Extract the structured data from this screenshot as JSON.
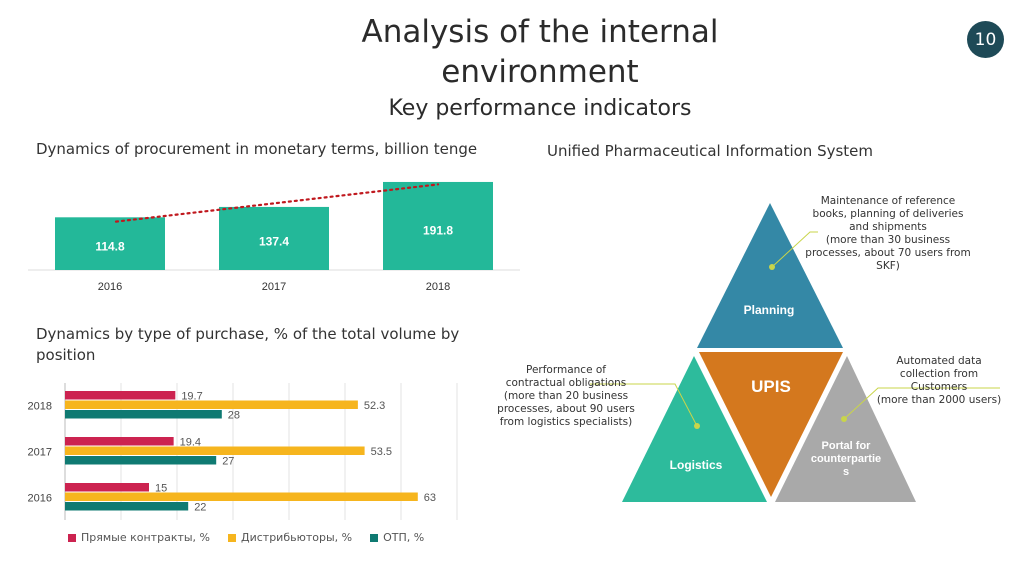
{
  "header": {
    "title": "Analysis of the internal environment",
    "subtitle": "Key performance indicators",
    "page_number": "10"
  },
  "sections": {
    "procurement_label": "Dynamics of procurement in monetary terms, billion tenge",
    "purchase_type_label": "Dynamics by type of purchase, % of the total volume by position",
    "upis_label": "Unified Pharmaceutical Information System"
  },
  "colors": {
    "teal": "#23b899",
    "red": "#cc2350",
    "orange": "#f6b51e",
    "dark_teal": "#0f7a72",
    "trend": "#c0181e",
    "badge": "#1e4a57"
  },
  "chart_data": [
    {
      "type": "bar",
      "title": "Dynamics of procurement in monetary terms, billion tenge",
      "categories": [
        "2016",
        "2017",
        "2018"
      ],
      "values": [
        114.8,
        137.4,
        191.8
      ],
      "value_labels": [
        "114.8",
        "137.4",
        "191.8"
      ],
      "trendline": "linear, dotted",
      "ylim": [
        0,
        200
      ]
    },
    {
      "type": "bar",
      "orientation": "horizontal",
      "title": "Dynamics by type of purchase, % of the total volume by position",
      "categories": [
        "2018",
        "2017",
        "2016"
      ],
      "series": [
        {
          "name": "Прямые контракты, %",
          "values": [
            19.7,
            19.4,
            15
          ]
        },
        {
          "name": "Дистрибьюторы, %",
          "values": [
            52.3,
            53.5,
            63
          ]
        },
        {
          "name": "ОТП, %",
          "values": [
            28,
            27,
            22
          ]
        }
      ],
      "value_labels": [
        [
          "19.7",
          "52.3",
          "28"
        ],
        [
          "19.4",
          "53.5",
          "27"
        ],
        [
          "15",
          "63",
          "22"
        ]
      ],
      "xlim": [
        0,
        70
      ],
      "legend": [
        "Прямые контракты, %",
        "Дистрибьюторы, %",
        "ОТП, %"
      ]
    }
  ],
  "diagram": {
    "center": "UPIS",
    "top": "Planning",
    "left": "Logistics",
    "right": "Portal for counterparties",
    "right_lines": [
      "Portal for",
      "counterpartie",
      "s"
    ],
    "ann_top_lines": [
      "Maintenance of reference",
      "books, planning of deliveries",
      "and shipments",
      "(more than 30 business",
      "processes, about 70 users from",
      "SKF)"
    ],
    "ann_left_lines": [
      "Performance of",
      "contractual obligations",
      "(more than 20 business",
      "processes, about 90 users",
      "from logistics specialists)"
    ],
    "ann_right_lines": [
      "Automated data",
      "collection from",
      "Customers",
      "(more than 2000 users)"
    ]
  }
}
